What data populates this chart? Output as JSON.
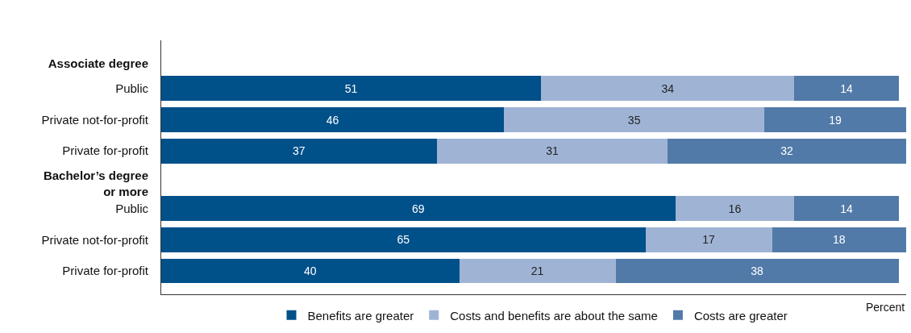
{
  "chart_data": {
    "type": "bar",
    "orientation": "horizontal",
    "stacked": true,
    "data_labels": true,
    "legend": "bottom",
    "grid": false,
    "xlabel": "Percent",
    "categories": [
      "Associate degree",
      "Public",
      "Private not-for-profit",
      "Private for-profit",
      "Bachelor’s degree or more",
      "Public",
      "Private not-for-profit",
      "Private for-profit"
    ],
    "series": [
      {
        "name": "Benefits are greater",
        "color": "#00508a",
        "values": [
          null,
          51,
          46,
          37,
          null,
          69,
          65,
          40
        ]
      },
      {
        "name": "Costs and benefits are about the same",
        "color": "#9fb4d5",
        "values": [
          null,
          34,
          35,
          31,
          null,
          16,
          17,
          21
        ]
      },
      {
        "name": "Costs are greater",
        "color": "#517aa8",
        "values": [
          null,
          14,
          19,
          32,
          null,
          14,
          18,
          38
        ]
      }
    ]
  }
}
